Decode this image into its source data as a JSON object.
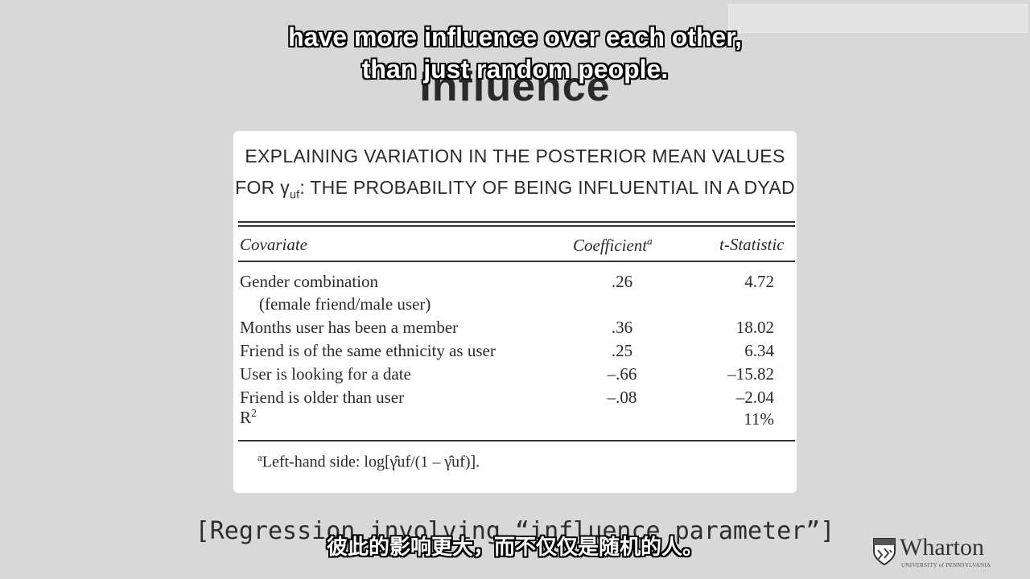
{
  "slide": {
    "title": "Influence",
    "caption": "[Regression involving “influence parameter”]"
  },
  "table": {
    "title_line1": "EXPLAINING VARIATION IN THE POSTERIOR MEAN VALUES",
    "title_line2_prefix": "FOR γ",
    "title_line2_sub": "uf",
    "title_line2_suffix": ": THE PROBABILITY OF BEING INFLUENTIAL IN A DYAD",
    "headers": {
      "covariate": "Covariate",
      "coefficient": "Coefficient",
      "coefficient_sup": "a",
      "tstat": "t-Statistic"
    },
    "rows": [
      {
        "covariate": "Gender combination",
        "coefficient": ".26",
        "tstat": "4.72"
      },
      {
        "covariate": "(female friend/male user)",
        "coefficient": "",
        "tstat": ""
      },
      {
        "covariate": "Months user has been a member",
        "coefficient": ".36",
        "tstat": "18.02"
      },
      {
        "covariate": "Friend is of the same ethnicity as user",
        "coefficient": ".25",
        "tstat": "6.34"
      },
      {
        "covariate": "User is looking for a date",
        "coefficient": "–.66",
        "tstat": "–15.82"
      },
      {
        "covariate": "Friend is older than user",
        "coefficient": "–.08",
        "tstat": "–2.04"
      },
      {
        "covariate": "R",
        "covariate_sup": "2",
        "coefficient": "",
        "tstat": "11%"
      }
    ],
    "footnote_sup": "a",
    "footnote": "Left-hand side: log[γ̂uf/(1 – γ̂uf)]."
  },
  "subtitles": {
    "english_line1": "have more influence over each other,",
    "english_line2": "than just random people.",
    "chinese": "彼此的影响更大，而不仅仅是随机的人。"
  },
  "logo": {
    "name": "Wharton",
    "subtext": "UNIVERSITY of PENNSYLVANIA",
    "icon": "penn-shield-icon"
  }
}
